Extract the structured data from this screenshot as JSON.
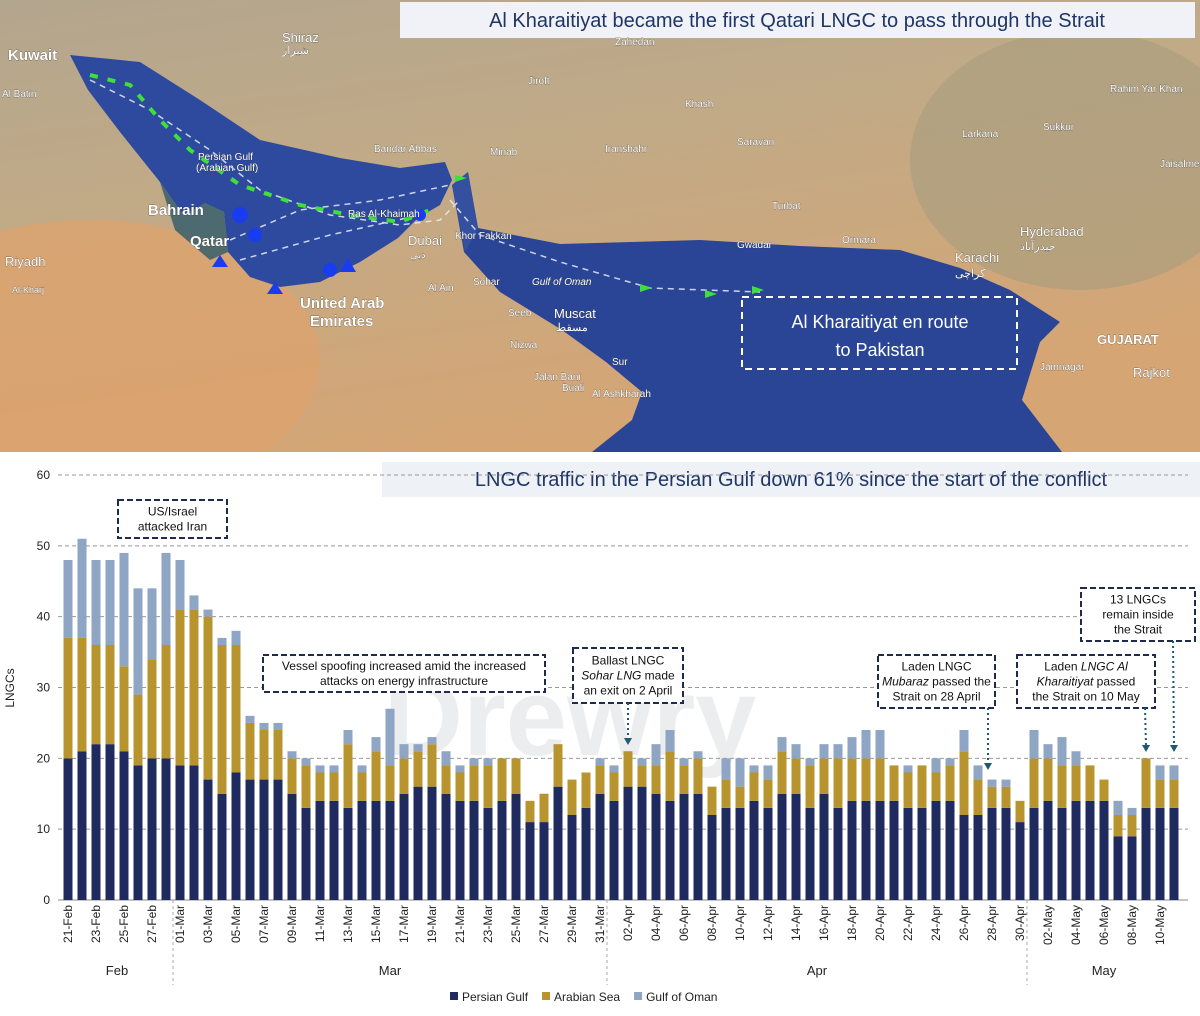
{
  "map": {
    "title": "Al Kharaitiyat became the first Qatari LNGC to pass through the Strait",
    "places": [
      "Kuwait",
      "Al Batin",
      "Shiraz",
      "شیراز",
      "Zahedan",
      "Jiroft",
      "Khash",
      "Rahim Yar Khan",
      "Sukkur",
      "Larkana",
      "Jaisalmer",
      "Persian Gulf",
      "(Arabian Gulf)",
      "Bandar Abbas",
      "Minab",
      "Iranshahr",
      "Saravan",
      "Turbat",
      "Bahrain",
      "Ras Al-Khaimah",
      "Qatar",
      "Dubai",
      "دبي",
      "Khor Fakkan",
      "Gwadar",
      "Ormara",
      "Karachi",
      "كراچى",
      "Hyderabad",
      "حيدرآباد",
      "Riyadh",
      "Al-Kharj",
      "Sohar",
      "Gulf of Oman",
      "Al Ain",
      "United Arab",
      "Emirates",
      "Seeb",
      "Muscat",
      "مسقط",
      "Nizwa",
      "Sur",
      "Jalan Bani",
      "Buali",
      "Al Ashkharah",
      "GUJARAT",
      "Jamnagar",
      "Rajkot"
    ],
    "callout": [
      "Al Kharaitiyat en route",
      "to Pakistan"
    ]
  },
  "chart_data": {
    "type": "bar",
    "stacked": true,
    "title": "LNGC traffic in the Persian Gulf down 61% since the start of the conflict",
    "y_label": "LNGCs",
    "watermark": "Drewry",
    "categories": [
      "21-Feb",
      null,
      "23-Feb",
      null,
      "25-Feb",
      null,
      "27-Feb",
      null,
      "01-Mar",
      null,
      "03-Mar",
      null,
      "05-Mar",
      null,
      "07-Mar",
      null,
      "09-Mar",
      null,
      "11-Mar",
      null,
      "13-Mar",
      null,
      "15-Mar",
      null,
      "17-Mar",
      null,
      "19-Mar",
      null,
      "21-Mar",
      null,
      "23-Mar",
      null,
      "25-Mar",
      null,
      "27-Mar",
      null,
      "29-Mar",
      null,
      "31-Mar",
      null,
      "02-Apr",
      null,
      "04-Apr",
      null,
      "06-Apr",
      null,
      "08-Apr",
      null,
      "10-Apr",
      null,
      "12-Apr",
      null,
      "14-Apr",
      null,
      "16-Apr",
      null,
      "18-Apr",
      null,
      "20-Apr",
      null,
      "22-Apr",
      null,
      "24-Apr",
      null,
      "26-Apr",
      null,
      "28-Apr",
      null,
      "30-Apr",
      null,
      "02-May",
      null,
      "04-May",
      null,
      "06-May",
      null,
      "08-May",
      null,
      "10-May",
      null
    ],
    "groups": [
      {
        "label": "Feb",
        "days": 8
      },
      {
        "label": "Mar",
        "days": 31
      },
      {
        "label": "Apr",
        "days": 30
      },
      {
        "label": "May",
        "days": 11
      }
    ],
    "series": [
      {
        "name": "Persian Gulf",
        "color": "#1f2b5e",
        "values": [
          20,
          21,
          22,
          22,
          21,
          19,
          20,
          20,
          19,
          19,
          17,
          15,
          18,
          17,
          17,
          17,
          15,
          13,
          14,
          14,
          13,
          14,
          14,
          14,
          15,
          16,
          16,
          15,
          14,
          14,
          13,
          14,
          15,
          11,
          11,
          16,
          12,
          13,
          15,
          14,
          16,
          16,
          15,
          14,
          15,
          15,
          12,
          13,
          13,
          14,
          13,
          15,
          15,
          13,
          15,
          13,
          14,
          14,
          14,
          14,
          13,
          13,
          14,
          14,
          12,
          12,
          13,
          13,
          11,
          13,
          14,
          13,
          14,
          14,
          14,
          9,
          9,
          13,
          13,
          13
        ]
      },
      {
        "name": "Arabian Sea",
        "color": "#b8942f",
        "values": [
          17,
          16,
          14,
          14,
          12,
          10,
          14,
          16,
          22,
          22,
          23,
          21,
          18,
          8,
          7,
          7,
          5,
          6,
          4,
          4,
          9,
          4,
          7,
          5,
          5,
          5,
          6,
          4,
          4,
          5,
          6,
          6,
          5,
          3,
          4,
          6,
          5,
          5,
          4,
          4,
          5,
          3,
          4,
          7,
          4,
          5,
          4,
          4,
          3,
          4,
          4,
          6,
          5,
          6,
          5,
          7,
          6,
          6,
          6,
          5,
          5,
          6,
          4,
          5,
          9,
          5,
          3,
          3,
          3,
          7,
          6,
          6,
          5,
          5,
          3,
          3,
          3,
          7,
          4,
          4
        ]
      },
      {
        "name": "Gulf of Oman",
        "color": "#8ea5c3",
        "values": [
          11,
          14,
          12,
          12,
          16,
          15,
          10,
          13,
          7,
          2,
          1,
          1,
          2,
          1,
          1,
          1,
          1,
          1,
          1,
          1,
          2,
          1,
          2,
          8,
          2,
          1,
          1,
          2,
          1,
          1,
          1,
          0,
          0,
          0,
          0,
          0,
          0,
          0,
          1,
          1,
          0,
          1,
          3,
          3,
          1,
          1,
          0,
          3,
          4,
          1,
          2,
          2,
          2,
          1,
          2,
          2,
          3,
          4,
          4,
          0,
          1,
          0,
          2,
          1,
          3,
          2,
          1,
          1,
          0,
          4,
          2,
          4,
          2,
          0,
          0,
          2,
          1,
          0,
          2,
          2
        ]
      }
    ],
    "ylim": [
      0,
      60
    ],
    "yticks": [
      0,
      10,
      20,
      30,
      40,
      50,
      60
    ],
    "grid": true,
    "legend": "bottom",
    "annotations": [
      {
        "lines": [
          [
            "US/Israel"
          ],
          [
            "attacked Iran"
          ]
        ]
      },
      {
        "lines": [
          [
            "Vessel spoofing increased amid the increased"
          ],
          [
            "attacks on energy infrastructure"
          ]
        ]
      },
      {
        "lines": [
          [
            "Ballast LNGC"
          ],
          [
            {
              "text": "Sohar LNG",
              "style": "italic"
            },
            " made"
          ],
          [
            "an exit on 2 April"
          ]
        ]
      },
      {
        "lines": [
          [
            "Laden LNGC"
          ],
          [
            {
              "text": "Mubaraz",
              "style": "italic"
            },
            " passed the"
          ],
          [
            "Strait on 28 April"
          ]
        ]
      },
      {
        "lines": [
          [
            "Laden ",
            {
              "text": "LNGC Al",
              "style": "italic"
            }
          ],
          [
            {
              "text": "Kharaitiyat",
              "style": "italic"
            },
            " passed"
          ],
          [
            "the Strait on 10 May"
          ]
        ]
      },
      {
        "lines": [
          [
            "13 LNGCs"
          ],
          [
            "remain inside"
          ],
          [
            "the Strait"
          ]
        ]
      }
    ]
  }
}
